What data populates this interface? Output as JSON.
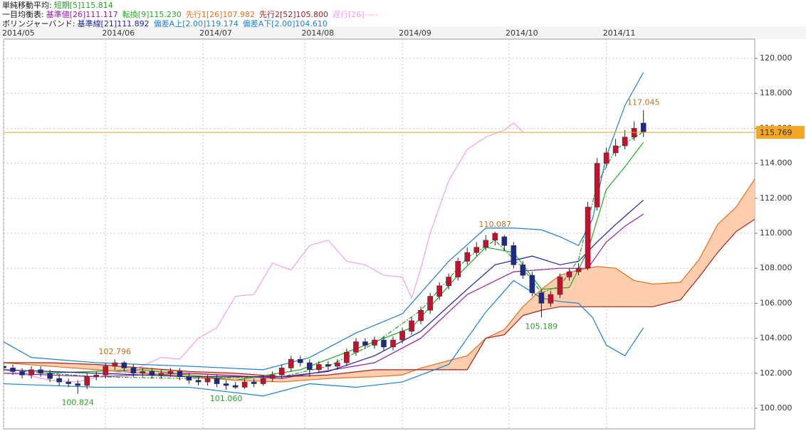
{
  "chart_data": {
    "type": "candlestick",
    "x": [
      0,
      2,
      4,
      6,
      8,
      10,
      12,
      14,
      16,
      18,
      20,
      22,
      24,
      26,
      28,
      30,
      32,
      34,
      36,
      38,
      40,
      42,
      44,
      46,
      48,
      50,
      52,
      54,
      56,
      58,
      60,
      62,
      64,
      66,
      68,
      70,
      72,
      74,
      76,
      78,
      80,
      82,
      84,
      86,
      88,
      90,
      92,
      94,
      96,
      98,
      100,
      102,
      104,
      106,
      108,
      110,
      112,
      114,
      116,
      118,
      120,
      122,
      124,
      126,
      128,
      130,
      132,
      134,
      136,
      138
    ],
    "open": [
      102.4,
      102.3,
      102.1,
      101.9,
      102.2,
      102.0,
      101.7,
      101.5,
      101.4,
      101.3,
      101.8,
      101.9,
      102.4,
      102.6,
      102.3,
      102.0,
      102.1,
      101.9,
      102.0,
      102.1,
      101.8,
      101.6,
      101.5,
      101.7,
      101.4,
      101.3,
      101.2,
      101.5,
      101.4,
      101.7,
      101.9,
      102.3,
      102.8,
      102.6,
      102.2,
      102.5,
      102.4,
      102.6,
      103.2,
      103.8,
      103.6,
      103.9,
      103.5,
      103.9,
      104.4,
      105.0,
      105.6,
      106.4,
      107.0,
      107.5,
      108.4,
      108.9,
      109.2,
      109.6,
      109.8,
      109.3,
      108.2,
      107.6,
      106.6,
      106.0,
      106.5,
      107.5,
      107.8,
      108.0,
      111.5,
      114.0,
      114.6,
      115.0,
      115.5,
      116.3
    ],
    "high": [
      102.6,
      102.5,
      102.3,
      102.4,
      102.4,
      102.2,
      101.9,
      101.7,
      101.6,
      102.0,
      102.1,
      102.6,
      102.796,
      102.7,
      102.5,
      102.3,
      102.3,
      102.2,
      102.3,
      102.3,
      102.0,
      101.8,
      101.9,
      101.9,
      101.6,
      101.5,
      101.7,
      101.7,
      101.9,
      102.1,
      102.5,
      103.0,
      103.0,
      102.8,
      102.7,
      102.7,
      102.8,
      103.4,
      104.0,
      104.0,
      104.1,
      104.1,
      104.1,
      104.6,
      105.2,
      105.8,
      106.6,
      107.2,
      107.7,
      108.6,
      109.2,
      109.5,
      109.9,
      110.087,
      109.9,
      109.5,
      108.4,
      107.8,
      106.8,
      106.7,
      107.7,
      108.0,
      108.3,
      111.8,
      114.3,
      114.9,
      115.4,
      115.9,
      116.4,
      117.045
    ],
    "low": [
      102.1,
      101.9,
      101.7,
      101.7,
      101.8,
      101.5,
      101.3,
      101.2,
      100.824,
      101.1,
      101.6,
      101.7,
      102.2,
      102.1,
      101.8,
      101.8,
      101.7,
      101.7,
      101.8,
      101.6,
      101.4,
      101.3,
      101.3,
      101.2,
      101.06,
      101.1,
      101.1,
      101.2,
      101.3,
      101.5,
      101.7,
      102.1,
      102.4,
      101.8,
      102.0,
      102.2,
      102.2,
      102.4,
      103.0,
      103.4,
      103.4,
      103.3,
      103.3,
      103.7,
      104.2,
      104.8,
      105.4,
      106.2,
      106.8,
      107.3,
      108.2,
      108.7,
      109.0,
      109.3,
      109.0,
      108.0,
      107.4,
      106.4,
      105.189,
      105.8,
      106.3,
      107.3,
      107.6,
      107.9,
      111.3,
      113.8,
      114.4,
      114.8,
      115.3,
      115.5
    ],
    "close": [
      102.3,
      102.1,
      101.9,
      102.2,
      102.0,
      101.7,
      101.5,
      101.4,
      101.3,
      101.8,
      101.9,
      102.4,
      102.6,
      102.3,
      102.0,
      102.1,
      101.9,
      102.0,
      102.1,
      101.8,
      101.6,
      101.5,
      101.7,
      101.4,
      101.3,
      101.2,
      101.5,
      101.4,
      101.7,
      101.9,
      102.3,
      102.8,
      102.6,
      102.2,
      102.5,
      102.4,
      102.6,
      103.2,
      103.8,
      103.6,
      103.9,
      103.5,
      103.9,
      104.4,
      105.0,
      105.6,
      106.4,
      107.0,
      107.5,
      108.4,
      108.9,
      109.2,
      109.6,
      110.0,
      109.3,
      108.2,
      107.6,
      106.6,
      106.0,
      106.5,
      107.5,
      107.8,
      108.0,
      111.5,
      114.0,
      114.6,
      115.0,
      115.5,
      116.0,
      115.8
    ],
    "up_color": "#c8102e",
    "down_color": "#1c2a8c",
    "xlim": [
      0,
      162
    ],
    "xticks": [
      {
        "value": 0,
        "label": "2014/05"
      },
      {
        "value": 22,
        "label": "2014/06"
      },
      {
        "value": 43,
        "label": "2014/07"
      },
      {
        "value": 65,
        "label": "2014/08"
      },
      {
        "value": 86,
        "label": "2014/09"
      },
      {
        "value": 109,
        "label": "2014/10"
      },
      {
        "value": 130,
        "label": "2014/11"
      }
    ],
    "ylim": [
      98.82,
      121.1
    ],
    "yticks": [
      {
        "value": 100,
        "label": "100.000"
      },
      {
        "value": 102,
        "label": "102.000"
      },
      {
        "value": 104,
        "label": "104.000"
      },
      {
        "value": 106,
        "label": "106.000"
      },
      {
        "value": 108,
        "label": "108.000"
      },
      {
        "value": 110,
        "label": "110.000"
      },
      {
        "value": 112,
        "label": "112.000"
      },
      {
        "value": 114,
        "label": "114.000"
      },
      {
        "value": 116,
        "label": "116.000"
      },
      {
        "value": 118,
        "label": "118.000"
      },
      {
        "value": 120,
        "label": "120.000"
      }
    ],
    "grid": true,
    "last_price": 115.769,
    "last_price_color": "#f5a623",
    "annotations": {
      "x": [
        16,
        24,
        48,
        106,
        116,
        138
      ],
      "values": [
        100.824,
        102.796,
        101.06,
        110.087,
        105.189,
        117.045
      ],
      "value_labels": [
        "100.824",
        "102.796",
        "101.060",
        "110.087",
        "105.189",
        "117.045"
      ],
      "colors": [
        "#2a9d2a",
        "#c07020",
        "#2a9d2a",
        "#c07020",
        "#2a9d2a",
        "#c07020"
      ]
    },
    "indicators": [
      {
        "title": "単純移動平均:",
        "series": [
          {
            "name": "短期[5]115.814",
            "color": "#2a9d2a",
            "style": "dashdot",
            "x": [
              4,
              20,
              40,
              60,
              70,
              80,
              90,
              100,
              106,
              112,
              116,
              120,
              124,
              128,
              132,
              138
            ],
            "values": [
              102.1,
              101.8,
              101.7,
              101.8,
              102.4,
              103.7,
              105.6,
              108.6,
              109.6,
              108.0,
              106.6,
              107.0,
              108.5,
              112.8,
              114.8,
              115.8
            ]
          }
        ]
      },
      {
        "title": "一目均衡表:",
        "cloud_color": "#ffc9a6",
        "series": [
          {
            "name": "基準値[26]111.117",
            "color": "#9020a0",
            "x": [
              0,
              20,
              40,
              60,
              80,
              90,
              100,
              110,
              120,
              126,
              130,
              134,
              138
            ],
            "values": [
              102.0,
              101.8,
              102.0,
              101.7,
              102.6,
              104.0,
              106.5,
              107.8,
              108.0,
              108.0,
              109.5,
              110.4,
              111.1
            ]
          },
          {
            "name": "転換[9]115.230",
            "color": "#22aa22",
            "x": [
              8,
              30,
              50,
              64,
              76,
              88,
              98,
              104,
              110,
              116,
              122,
              126,
              130,
              134,
              138
            ],
            "values": [
              102.0,
              102.2,
              101.6,
              102.2,
              103.4,
              104.6,
              107.6,
              109.2,
              108.9,
              106.8,
              106.9,
              109.0,
              112.5,
              113.8,
              115.2
            ]
          },
          {
            "name": "先行1[26]107.982",
            "color": "#e07020",
            "x": [
              0,
              10,
              20,
              30,
              40,
              50,
              60,
              70,
              80,
              86,
              90,
              100,
              104,
              108,
              112,
              116,
              120,
              124,
              128,
              132,
              136,
              140,
              146,
              150,
              154,
              158,
              162
            ],
            "values": [
              102.6,
              102.4,
              102.2,
              102.0,
              101.8,
              101.6,
              101.5,
              101.7,
              101.8,
              101.9,
              102.3,
              103.0,
              104.0,
              104.5,
              105.8,
              106.8,
              107.6,
              107.9,
              108.1,
              108.0,
              107.3,
              107.1,
              107.2,
              108.5,
              110.5,
              111.5,
              113.1
            ]
          },
          {
            "name": "先行2[52]105.800",
            "color": "#a02020",
            "x": [
              0,
              10,
              20,
              30,
              40,
              50,
              60,
              70,
              80,
              86,
              90,
              100,
              104,
              108,
              112,
              116,
              120,
              124,
              128,
              132,
              136,
              140,
              146,
              150,
              154,
              158,
              162
            ],
            "values": [
              102.6,
              102.6,
              102.5,
              102.3,
              102.1,
              102.0,
              101.8,
              101.9,
              102.2,
              102.2,
              102.2,
              102.2,
              104.0,
              104.2,
              105.3,
              105.6,
              105.8,
              105.8,
              105.8,
              105.8,
              105.8,
              105.8,
              106.2,
              107.5,
              108.9,
              110.1,
              110.8
            ]
          },
          {
            "name": "遅行[26]-----",
            "color": "#f0a0e8",
            "x": [
              0,
              10,
              16,
              22,
              28,
              34,
              38,
              42,
              46,
              50,
              54,
              58,
              62,
              66,
              70,
              74,
              78,
              82,
              86,
              88,
              90,
              92,
              96,
              100,
              104,
              108,
              110,
              112
            ],
            "values": [
              102.2,
              101.6,
              101.5,
              101.9,
              102.2,
              102.9,
              102.8,
              104.0,
              104.6,
              106.4,
              106.5,
              108.3,
              107.9,
              109.3,
              109.6,
              108.4,
              108.2,
              107.6,
              107.5,
              106.3,
              108.0,
              110.0,
              113.0,
              114.8,
              115.5,
              115.9,
              116.3,
              115.8
            ]
          }
        ]
      },
      {
        "title": "ボリンジャーバンド:",
        "series": [
          {
            "name": "基準線[21]111.892",
            "color": "#2020a0",
            "x": [
              0,
              20,
              40,
              60,
              70,
              80,
              90,
              100,
              106,
              114,
              120,
              124,
              128,
              132,
              138
            ],
            "values": [
              102.2,
              102.0,
              101.8,
              101.8,
              102.1,
              103.0,
              104.4,
              106.8,
              108.2,
              108.7,
              108.2,
              108.4,
              109.5,
              110.5,
              111.9
            ]
          },
          {
            "name": "偏差A上[2.00]119.174",
            "color": "#1a7fd0",
            "x": [
              0,
              6,
              20,
              40,
              56,
              66,
              76,
              86,
              96,
              104,
              110,
              116,
              120,
              124,
              127,
              130,
              134,
              138
            ],
            "values": [
              103.8,
              102.9,
              102.6,
              102.4,
              102.2,
              102.9,
              104.3,
              105.4,
              108.4,
              110.3,
              110.3,
              110.2,
              109.8,
              109.3,
              110.8,
              114.4,
              117.3,
              119.2
            ]
          },
          {
            "name": "偏差A下[2.00]104.610",
            "color": "#1a7fd0",
            "x": [
              0,
              20,
              40,
              56,
              66,
              76,
              86,
              96,
              104,
              110,
              116,
              120,
              124,
              127,
              130,
              134,
              138
            ],
            "values": [
              101.4,
              101.2,
              101.2,
              100.7,
              101.4,
              101.2,
              101.5,
              102.5,
              105.5,
              107.3,
              106.3,
              106.1,
              106.0,
              105.2,
              103.6,
              103.0,
              104.6
            ]
          }
        ]
      }
    ]
  }
}
